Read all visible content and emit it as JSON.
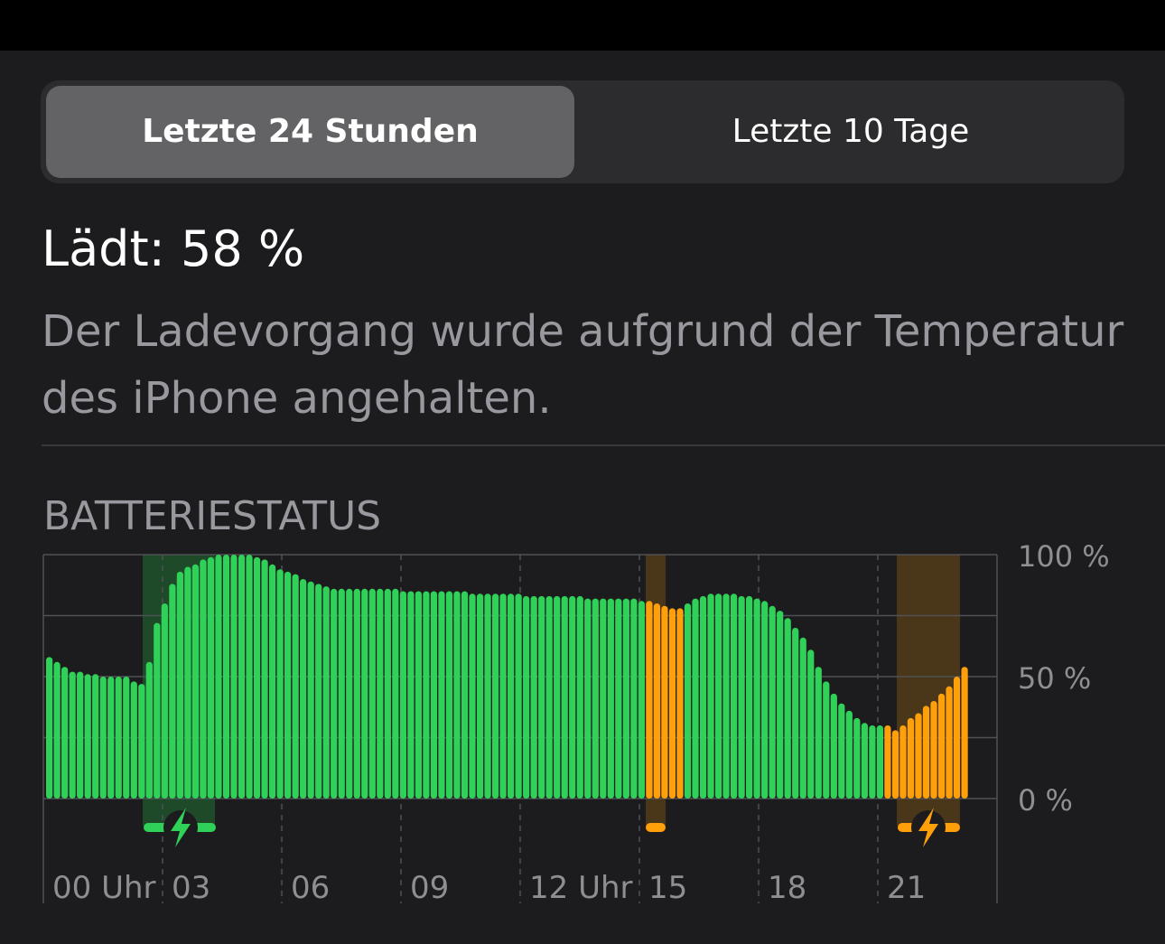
{
  "tabs": [
    {
      "label": "Letzte 24 Stunden",
      "selected": true
    },
    {
      "label": "Letzte 10 Tage",
      "selected": false
    }
  ],
  "status": {
    "title": "Lädt: 58 %",
    "description": "Der Ladevorgang wurde aufgrund der Temperatur des iPhone angehalten."
  },
  "section_title": "BATTERIESTATUS",
  "colors": {
    "green": "#30d158",
    "orange": "#ff9f0a",
    "green_band": "#1f4a2a",
    "orange_band": "#4a3619",
    "grid": "#505055",
    "label": "#8e8e93",
    "background": "#1c1c1e"
  },
  "chart_data": {
    "type": "bar",
    "ylabel": "",
    "ylim": [
      0,
      100
    ],
    "y_ticks": [
      "100 %",
      "50 %",
      "0 %"
    ],
    "x_ticks": [
      "00 Uhr",
      "03",
      "06",
      "09",
      "12 Uhr",
      "15",
      "18",
      "21"
    ],
    "series": [
      {
        "values": [
          58,
          56,
          54,
          52,
          52,
          51,
          51,
          50,
          50,
          50,
          50,
          48,
          47,
          56,
          72,
          80,
          88,
          93,
          95,
          96,
          98,
          99,
          100,
          100,
          100,
          100,
          100,
          99,
          98,
          96,
          94,
          93,
          92,
          90,
          89,
          88,
          87,
          86,
          86,
          86,
          86,
          86,
          86,
          86,
          86,
          86,
          85,
          85,
          85,
          85,
          85,
          85,
          85,
          85,
          85,
          84,
          84,
          84,
          84,
          84,
          84,
          84,
          83,
          83,
          83,
          83,
          83,
          83,
          83,
          83,
          82,
          82,
          82,
          82,
          82,
          82,
          82,
          81,
          81,
          80,
          79,
          78,
          78,
          80,
          82,
          83,
          84,
          84,
          84,
          84,
          83,
          83,
          82,
          81,
          79,
          77,
          74,
          70,
          66,
          61,
          54,
          48,
          43,
          39,
          36,
          33,
          31,
          30,
          30,
          30,
          28,
          30,
          33,
          35,
          38,
          40,
          43,
          46,
          50,
          54
        ]
      }
    ],
    "bar_colors": "green for bars 1–78, orange for bars 79–83, green for bars 84–109, orange for bars 110–120",
    "charging_bands": [
      {
        "color": "green",
        "icon": "charging-bolt-icon"
      },
      {
        "color": "orange",
        "icon": "none"
      },
      {
        "color": "orange",
        "icon": "charging-bolt-icon"
      }
    ]
  }
}
